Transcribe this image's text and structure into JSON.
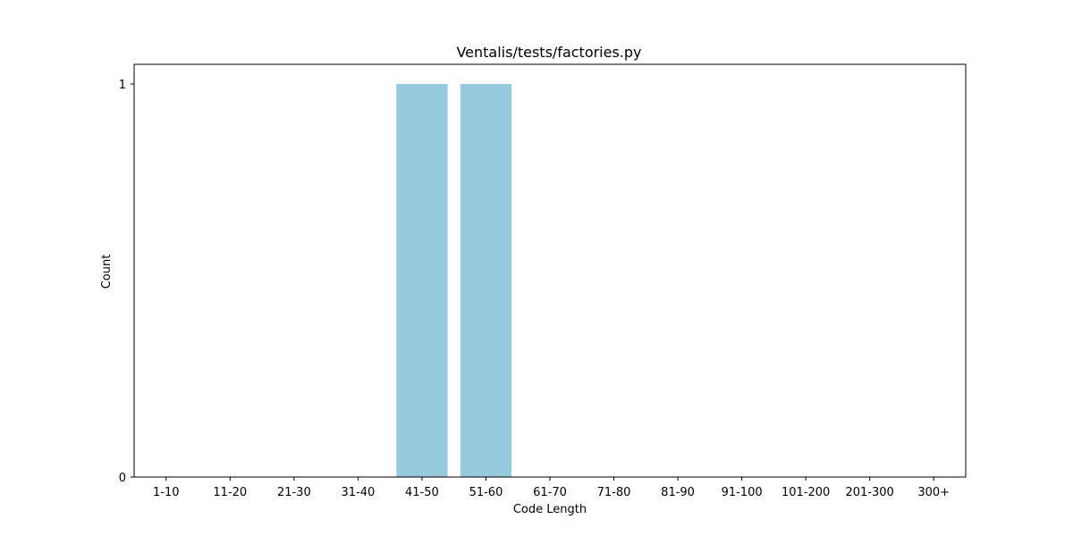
{
  "chart_data": {
    "type": "bar",
    "title": "Ventalis/tests/factories.py",
    "xlabel": "Code Length",
    "ylabel": "Count",
    "categories": [
      "1-10",
      "11-20",
      "21-30",
      "31-40",
      "41-50",
      "51-60",
      "61-70",
      "71-80",
      "81-90",
      "91-100",
      "101-200",
      "201-300",
      "300+"
    ],
    "values": [
      0,
      0,
      0,
      0,
      1,
      1,
      0,
      0,
      0,
      0,
      0,
      0,
      0
    ],
    "yticks": [
      0,
      1
    ],
    "ylim": [
      0,
      1.05
    ],
    "grid": false,
    "bar_color": "#96c9dc"
  }
}
